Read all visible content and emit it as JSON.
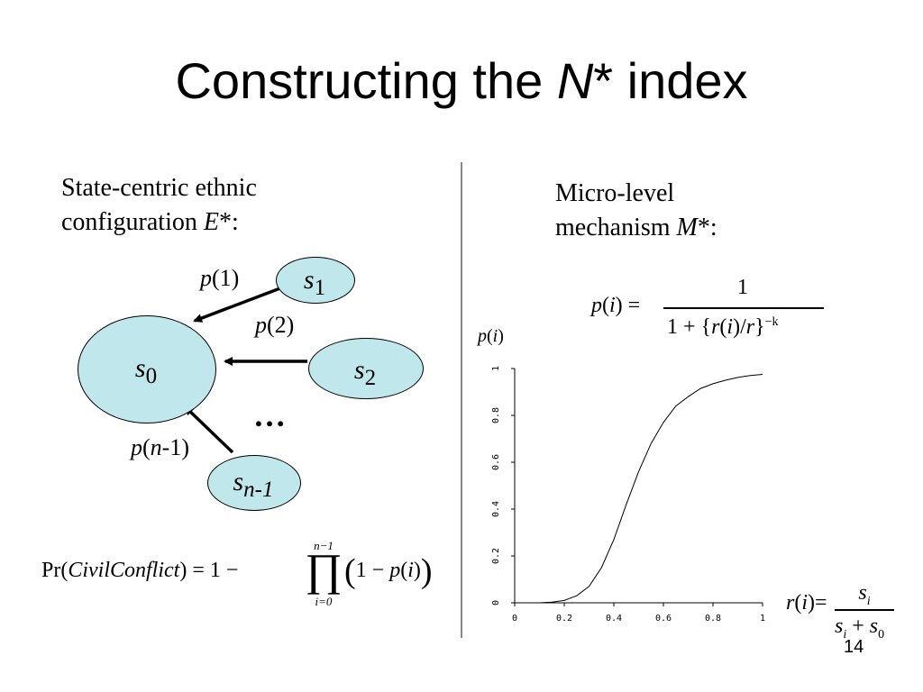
{
  "slide": {
    "title_prefix": "Constructing the ",
    "title_italic": "N",
    "title_suffix": "* index",
    "page_number": "14"
  },
  "left": {
    "heading_line1": "State-centric ethnic",
    "heading_line2_prefix": "configuration ",
    "heading_line2_var": "E",
    "heading_line2_suffix": "*:",
    "nodes": {
      "s0": {
        "var": "s",
        "sub": "0"
      },
      "s1": {
        "var": "s",
        "sub": "1"
      },
      "s2": {
        "var": "s",
        "sub": "2"
      },
      "sn1": {
        "var": "s",
        "sub": "n-1"
      }
    },
    "edge_labels": {
      "p1": {
        "fn": "p",
        "arg": "(1)"
      },
      "p2": {
        "fn": "p",
        "arg": "(2)"
      },
      "pn1_fn": "p",
      "pn1_open": "(",
      "pn1_var": "n",
      "pn1_rest": "-1)"
    },
    "ellipsis": "…",
    "formula": {
      "lhs_pr": "Pr(",
      "lhs_var": "CivilConflict",
      "lhs_close": ") = 1 −",
      "prod_symbol": "∏",
      "prod_upper": "n−1",
      "prod_lower": "i=0",
      "body_open": "(",
      "body_one": "1 − ",
      "body_p": "p",
      "body_arg_open": "(",
      "body_i": "i",
      "body_arg_close": ")",
      "body_close": ")"
    }
  },
  "right": {
    "heading_line1": "Micro-level",
    "heading_line2_prefix": "mechanism ",
    "heading_line2_var": "M",
    "heading_line2_suffix": "*:",
    "p_formula": {
      "lhs_p": "p",
      "lhs_open": "(",
      "lhs_i": "i",
      "lhs_close": ") =",
      "numerator": "1",
      "den_prefix": "1 + {",
      "den_r": "r",
      "den_open": "(",
      "den_i": "i",
      "den_mid": ")/",
      "den_r2": "r",
      "den_close": "}",
      "den_exp": "−k"
    },
    "r_formula": {
      "lhs_r": "r",
      "lhs_open": "(",
      "lhs_i": "i",
      "lhs_close": ")=",
      "num_s": "s",
      "num_sub": "i",
      "den_s1": "s",
      "den_sub1": "i",
      "den_plus": " + ",
      "den_s2": "s",
      "den_sub2": "0"
    }
  },
  "chart_data": {
    "type": "line",
    "title": "",
    "ylabel_fn": "p",
    "ylabel_open": "(",
    "ylabel_var": "i",
    "ylabel_close": ")",
    "xlabel": "",
    "xlim": [
      0,
      1
    ],
    "ylim": [
      0,
      1
    ],
    "x_ticks": [
      "0",
      "0.2",
      "0.4",
      "0.6",
      "0.8",
      "1"
    ],
    "y_ticks": [
      "0",
      "0.2",
      "0.4",
      "0.6",
      "0.8",
      "1"
    ],
    "grid": false,
    "series": [
      {
        "x": [
          0,
          0.1,
          0.15,
          0.2,
          0.25,
          0.3,
          0.35,
          0.4,
          0.45,
          0.5,
          0.55,
          0.6,
          0.65,
          0.7,
          0.75,
          0.8,
          0.85,
          0.9,
          0.95,
          1.0
        ],
        "y": [
          0,
          0.0,
          0.003,
          0.01,
          0.03,
          0.07,
          0.15,
          0.27,
          0.42,
          0.56,
          0.68,
          0.77,
          0.84,
          0.88,
          0.915,
          0.935,
          0.95,
          0.962,
          0.97,
          0.975
        ]
      }
    ],
    "color": "#000000"
  }
}
